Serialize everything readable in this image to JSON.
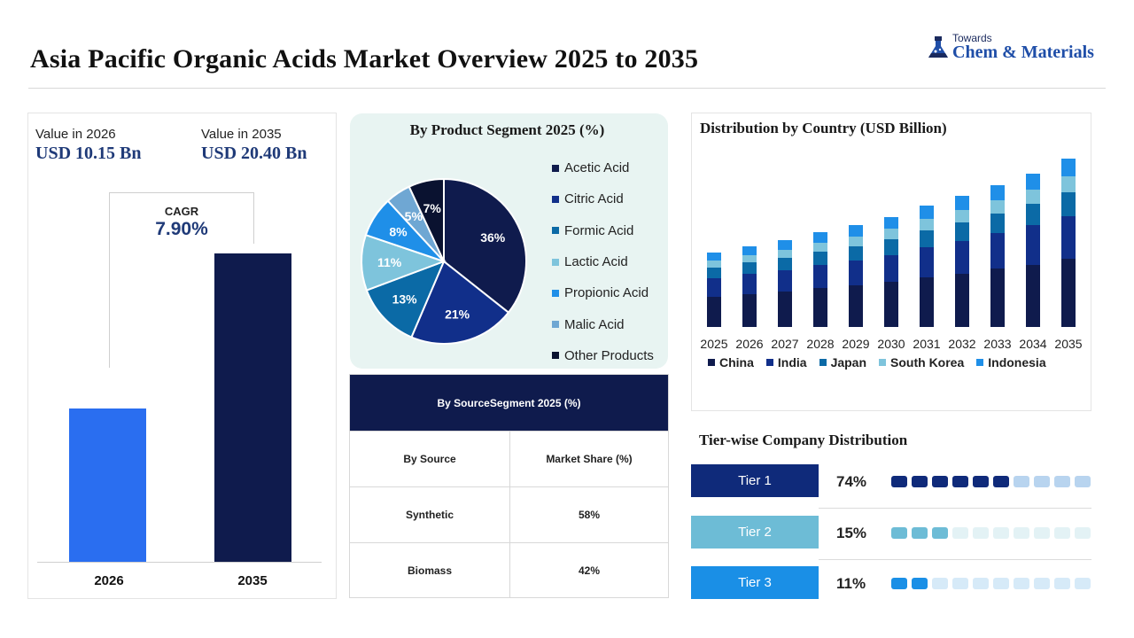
{
  "header": {
    "title": "Asia Pacific Organic Acids Market Overview 2025 to 2035",
    "logo_small": "Towards",
    "logo_big": "Chem & Materials"
  },
  "market_value": {
    "label_2026": "Value in 2026",
    "value_2026": "USD 10.15 Bn",
    "label_2035": "Value in 2035",
    "value_2035": "USD 20.40 Bn",
    "cagr_label": "CAGR",
    "cagr_value": "7.90%"
  },
  "product_segment": {
    "title": "By Product Segment 2025 (%)"
  },
  "source_table": {
    "title": "By SourceSegment 2025 (%)",
    "col1": "By Source",
    "col2": "Market Share (%)",
    "rows": [
      {
        "source": "Synthetic",
        "share": "58%"
      },
      {
        "source": "Biomass",
        "share": "42%"
      }
    ]
  },
  "country_chart": {
    "title": "Distribution by Country (USD Billion)"
  },
  "tiers": {
    "title": "Tier-wise Company Distribution",
    "items": [
      {
        "label": "Tier 1",
        "pct": "74%",
        "filled": 6,
        "color": "#0f2a7a",
        "light": "#b8d4ef"
      },
      {
        "label": "Tier 2",
        "pct": "15%",
        "filled": 3,
        "color": "#6dbcd6",
        "light": "#e3f2f5"
      },
      {
        "label": "Tier 3",
        "pct": "11%",
        "filled": 2,
        "color": "#1a8fe6",
        "light": "#d6eaf8"
      }
    ]
  },
  "colors": {
    "navy": "#0f1b4d",
    "blue_bar": "#2a6ef0",
    "accent": "#1f3a78"
  },
  "chart_data": [
    {
      "type": "bar",
      "categories": [
        "2026",
        "2035"
      ],
      "values": [
        10.15,
        20.4
      ],
      "colors": [
        "#2a6ef0",
        "#0f1b4d"
      ],
      "title": "",
      "xlabel": "",
      "ylabel": ""
    },
    {
      "type": "pie",
      "title": "By Product Segment 2025 (%)",
      "labels": [
        "Acetic Acid",
        "Citric Acid",
        "Formic Acid",
        "Lactic Acid",
        "Propionic Acid",
        "Malic Acid",
        "Other Products"
      ],
      "values": [
        36,
        21,
        13,
        11,
        8,
        5,
        7
      ],
      "display_labels": [
        "36%",
        "21%",
        "13%",
        "11%",
        "8%",
        "5%",
        "7%"
      ],
      "colors": [
        "#0f1b4d",
        "#112f8a",
        "#0b6aa6",
        "#7ec4dc",
        "#1f8fe8",
        "#6fa7d3",
        "#0a1230"
      ],
      "legend": "right"
    },
    {
      "type": "bar",
      "stacked": true,
      "title": "Distribution by Country (USD Billion)",
      "categories": [
        "2025",
        "2026",
        "2027",
        "2028",
        "2029",
        "2030",
        "2031",
        "2032",
        "2033",
        "2034",
        "2035"
      ],
      "series": [
        {
          "name": "China",
          "color": "#0f1b4d",
          "values": [
            3.4,
            3.7,
            4.0,
            4.4,
            4.7,
            5.1,
            5.6,
            6.0,
            6.6,
            7.0,
            7.7
          ]
        },
        {
          "name": "India",
          "color": "#112f8a",
          "values": [
            2.1,
            2.3,
            2.4,
            2.6,
            2.8,
            3.0,
            3.4,
            3.7,
            4.0,
            4.5,
            4.8
          ]
        },
        {
          "name": "Japan",
          "color": "#0b6aa6",
          "values": [
            1.2,
            1.3,
            1.4,
            1.5,
            1.6,
            1.8,
            1.9,
            2.1,
            2.2,
            2.4,
            2.7
          ]
        },
        {
          "name": "South Korea",
          "color": "#7ec4dc",
          "values": [
            0.8,
            0.8,
            0.9,
            1.0,
            1.1,
            1.2,
            1.3,
            1.4,
            1.5,
            1.6,
            1.8
          ]
        },
        {
          "name": "Indonesia",
          "color": "#1f8fe8",
          "values": [
            0.9,
            1.0,
            1.1,
            1.2,
            1.3,
            1.3,
            1.5,
            1.6,
            1.7,
            1.8,
            2.0
          ]
        }
      ],
      "ylim": [
        0,
        20
      ],
      "legend": "bottom"
    }
  ]
}
